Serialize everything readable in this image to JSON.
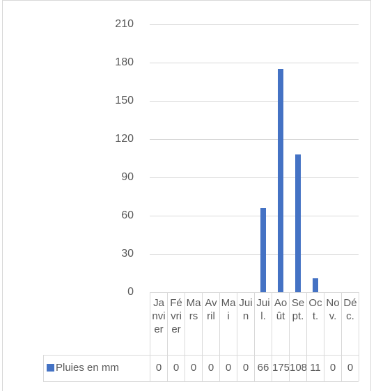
{
  "chart_data": {
    "type": "bar",
    "categories": [
      "Janvier",
      "Février",
      "Mars",
      "Avril",
      "Mai",
      "Juin",
      "Juil.",
      "Août",
      "Sept.",
      "Oct.",
      "Nov.",
      "Déc."
    ],
    "series": [
      {
        "name": "Pluies en mm",
        "color": "#4472c4",
        "values": [
          0,
          0,
          0,
          0,
          0,
          0,
          66,
          175,
          108,
          11,
          0,
          0
        ]
      }
    ],
    "ylim": [
      0,
      210
    ],
    "yticks": [
      0,
      30,
      60,
      90,
      120,
      150,
      180,
      210
    ],
    "grid": true,
    "data_table": true
  }
}
